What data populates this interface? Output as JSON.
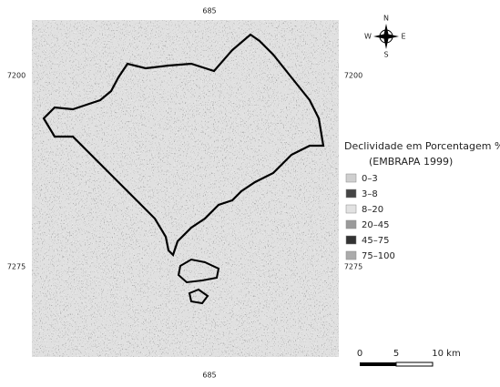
{
  "map": {
    "coords": {
      "top": "685",
      "bottom": "685",
      "left_upper": "7200",
      "right_upper": "7200",
      "left_lower": "7275",
      "right_lower": "7275"
    },
    "compass": {
      "north": "N",
      "south": "S",
      "west": "W",
      "east": "E"
    },
    "legend": {
      "title": "Declividade em Porcentagem %",
      "source": "(EMBRAPA 1999)",
      "items": [
        {
          "label": "0–3",
          "color": "#cfcfcf"
        },
        {
          "label": "3–8",
          "color": "#454545"
        },
        {
          "label": "8–20",
          "color": "#e2e2e2"
        },
        {
          "label": "20–45",
          "color": "#9a9a9a"
        },
        {
          "label": "45–75",
          "color": "#333333"
        },
        {
          "label": "75–100",
          "color": "#ababab"
        }
      ]
    },
    "scale": {
      "labels": [
        "0",
        "5",
        "10 km"
      ]
    }
  }
}
